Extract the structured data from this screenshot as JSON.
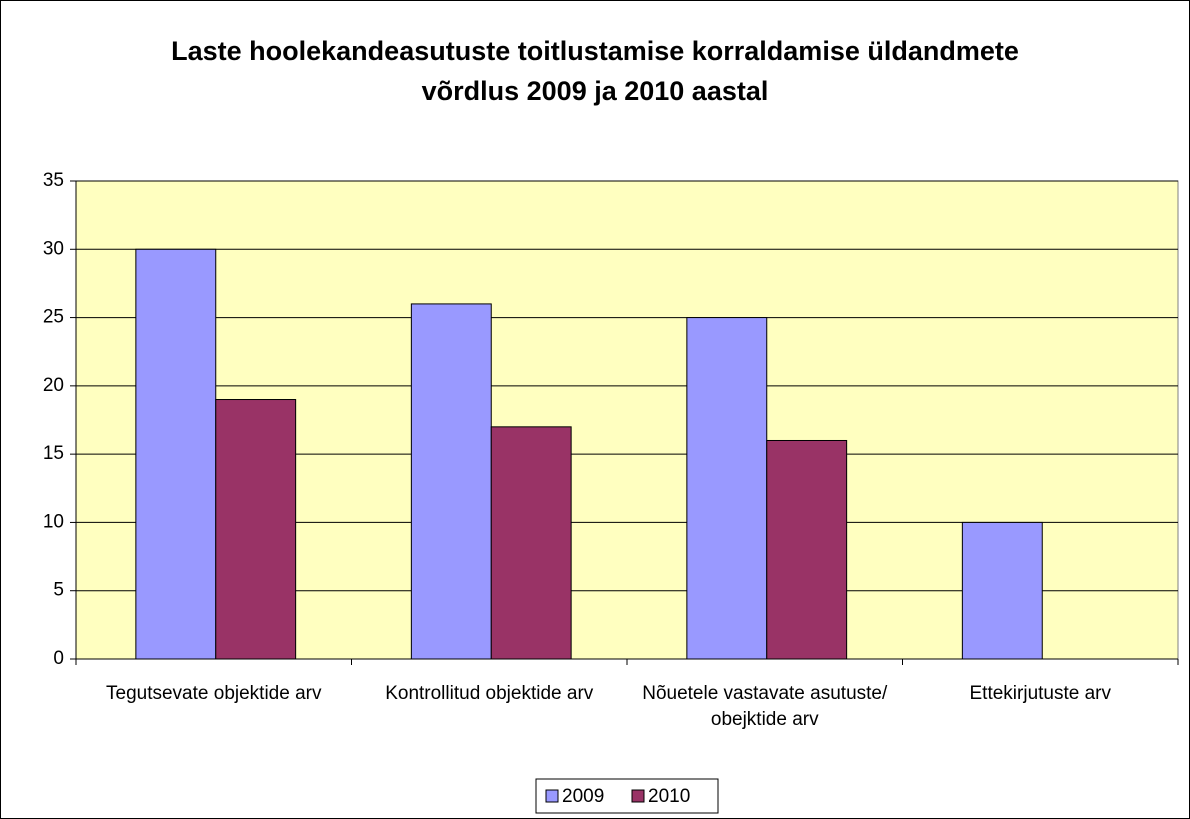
{
  "chart_data": {
    "type": "bar",
    "title": "Laste hoolekandeasutuste toitlustamise korraldamise üldandmete võrdlus 2009 ja 2010 aastal",
    "categories": [
      "Tegutsevate objektide arv",
      "Kontrollitud objektide arv",
      "Nõuetele vastavate asutuste/ obejktide  arv",
      "Ettekirjutuste arv"
    ],
    "series": [
      {
        "name": "2009",
        "color": "#9999ff",
        "values": [
          30,
          26,
          25,
          10
        ]
      },
      {
        "name": "2010",
        "color": "#993366",
        "values": [
          19,
          17,
          16,
          null
        ]
      }
    ],
    "ylim": [
      0,
      35
    ],
    "yticks": [
      0,
      5,
      10,
      15,
      20,
      25,
      30,
      35
    ],
    "grid": true,
    "legend": "bottom"
  }
}
